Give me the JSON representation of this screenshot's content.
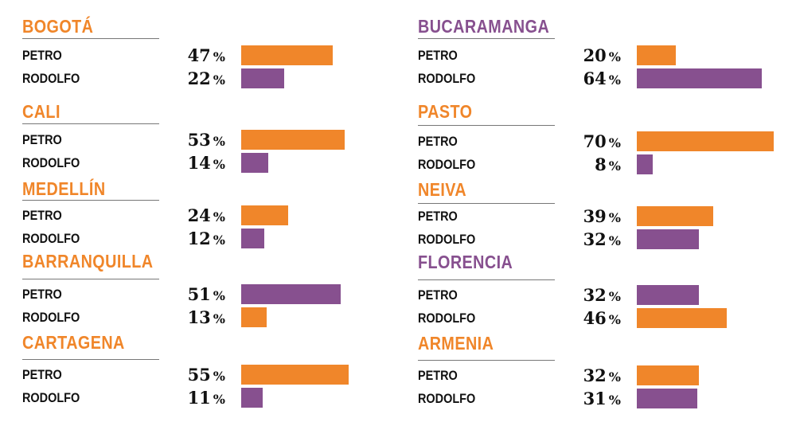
{
  "chart_data": {
    "type": "bar",
    "unit": "%",
    "colors": {
      "orange": "#F0862A",
      "purple": "#87508F"
    },
    "cities": [
      {
        "name": "BOGOTÁ",
        "color": "#F0862A",
        "rows": [
          {
            "label": "PETRO",
            "value": 47,
            "color": "#F0862A"
          },
          {
            "label": "RODOLFO",
            "value": 22,
            "color": "#87508F"
          }
        ]
      },
      {
        "name": "CALI",
        "color": "#F0862A",
        "rows": [
          {
            "label": "PETRO",
            "value": 53,
            "color": "#F0862A"
          },
          {
            "label": "RODOLFO",
            "value": 14,
            "color": "#87508F"
          }
        ]
      },
      {
        "name": "MEDELLÍN",
        "color": "#F0862A",
        "rows": [
          {
            "label": "PETRO",
            "value": 24,
            "color": "#F0862A"
          },
          {
            "label": "RODOLFO",
            "value": 12,
            "color": "#87508F"
          }
        ]
      },
      {
        "name": "BARRANQUILLA",
        "color": "#F0862A",
        "rows": [
          {
            "label": "PETRO",
            "value": 51,
            "color": "#87508F"
          },
          {
            "label": "RODOLFO",
            "value": 13,
            "color": "#F0862A"
          }
        ]
      },
      {
        "name": "CARTAGENA",
        "color": "#F0862A",
        "rows": [
          {
            "label": "PETRO",
            "value": 55,
            "color": "#F0862A"
          },
          {
            "label": "RODOLFO",
            "value": 11,
            "color": "#87508F"
          }
        ]
      },
      {
        "name": "BUCARAMANGA",
        "color": "#87508F",
        "rows": [
          {
            "label": "PETRO",
            "value": 20,
            "color": "#F0862A"
          },
          {
            "label": "RODOLFO",
            "value": 64,
            "color": "#87508F"
          }
        ]
      },
      {
        "name": "PASTO",
        "color": "#F0862A",
        "rows": [
          {
            "label": "PETRO",
            "value": 70,
            "color": "#F0862A"
          },
          {
            "label": "RODOLFO",
            "value": 8,
            "color": "#87508F"
          }
        ]
      },
      {
        "name": "NEIVA",
        "color": "#F0862A",
        "rows": [
          {
            "label": "PETRO",
            "value": 39,
            "color": "#F0862A"
          },
          {
            "label": "RODOLFO",
            "value": 32,
            "color": "#87508F"
          }
        ]
      },
      {
        "name": "FLORENCIA",
        "color": "#87508F",
        "rows": [
          {
            "label": "PETRO",
            "value": 32,
            "color": "#87508F"
          },
          {
            "label": "RODOLFO",
            "value": 46,
            "color": "#F0862A"
          }
        ]
      },
      {
        "name": "ARMENIA",
        "color": "#F0862A",
        "rows": [
          {
            "label": "PETRO",
            "value": 32,
            "color": "#F0862A"
          },
          {
            "label": "RODOLFO",
            "value": 31,
            "color": "#87508F"
          }
        ]
      }
    ]
  }
}
